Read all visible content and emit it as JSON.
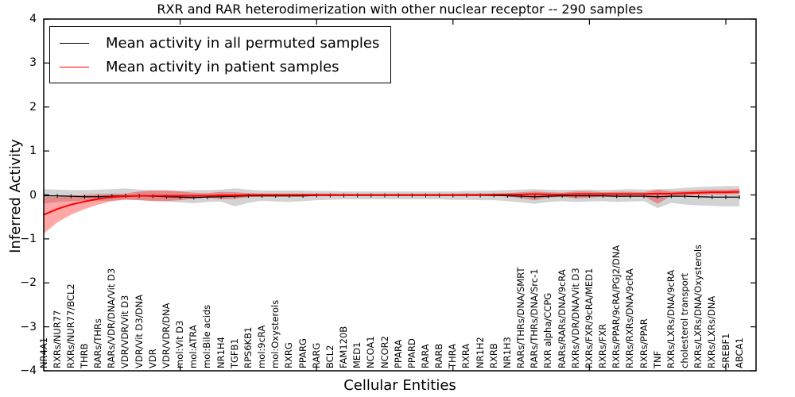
{
  "figure": {
    "title": "RXR and RAR heterodimerization with other nuclear receptor -- 290 samples",
    "xlabel": "Cellular Entities",
    "ylabel": "Inferred Activity"
  },
  "chart_data": {
    "type": "line",
    "title": "RXR and RAR heterodimerization with other nuclear receptor -- 290 samples",
    "xlabel": "Cellular Entities",
    "ylabel": "Inferred Activity",
    "ylim": [
      -4,
      4
    ],
    "yticks": [
      4,
      3,
      2,
      1,
      0,
      -1,
      -2,
      -3,
      -4
    ],
    "xtick_indices": [
      0,
      10,
      20,
      30,
      40,
      50
    ],
    "grid": false,
    "legend_position": "upper left",
    "categories": [
      "NR4A1",
      "RXRs/NUR77",
      "RXRs/NUR77/BCL2",
      "THRB",
      "RARs/THRs",
      "RARs/VDR/DNA/Vit D3",
      "VDR/VDR/Vit D3",
      "VDR/Vit D3/DNA",
      "VDR",
      "VDR/VDR/DNA",
      "mol:Vit D3",
      "mol:ATRA",
      "mol:Bile acids",
      "NR1H4",
      "TGFB1",
      "RPS6KB1",
      "mol:9cRA",
      "mol:Oxysterols",
      "RXRG",
      "PPARG",
      "RARG",
      "BCL2",
      "FAM120B",
      "MED1",
      "NCOA1",
      "NCOR2",
      "PPARA",
      "PPARD",
      "RARA",
      "RARB",
      "THRA",
      "RXRA",
      "NR1H2",
      "RXRB",
      "NR1H3",
      "RARs/THRs/DNA/SMRT",
      "RARs/THRs/DNA/Src-1",
      "RXR alpha/CCPG",
      "RARs/RARs/DNA/9cRA",
      "RXRs/VDR/DNA/Vit D3",
      "RXRs/FXR/9cRA/MED1",
      "RXRs/FXR",
      "RXRs/PPAR/9cRA/PGJ2/DNA",
      "RXRs/RXRs/DNA/9cRA",
      "RXRs/PPAR",
      "TNF",
      "RXRs/LXRs/DNA/9cRA",
      "cholesterol transport",
      "RXRs/LXRs/DNA/Oxysterols",
      "RXRs/LXRs/DNA",
      "SREBF1",
      "ABCA1"
    ],
    "series": [
      {
        "name": "Mean activity in all permuted samples",
        "color": "#000000",
        "line_width": 1.3,
        "marker": "tick",
        "values": [
          -0.02,
          -0.02,
          -0.03,
          -0.04,
          -0.04,
          -0.03,
          -0.02,
          -0.02,
          -0.03,
          -0.04,
          -0.05,
          -0.06,
          -0.05,
          -0.04,
          -0.03,
          -0.02,
          -0.02,
          -0.02,
          -0.02,
          -0.02,
          -0.01,
          -0.01,
          -0.01,
          -0.01,
          -0.01,
          -0.01,
          -0.01,
          -0.01,
          -0.01,
          -0.01,
          -0.01,
          -0.01,
          -0.01,
          -0.01,
          -0.02,
          -0.03,
          -0.04,
          -0.03,
          -0.02,
          -0.02,
          -0.02,
          -0.02,
          -0.03,
          -0.03,
          -0.03,
          -0.04,
          -0.03,
          -0.03,
          -0.04,
          -0.05,
          -0.05,
          -0.05
        ]
      },
      {
        "name": "Mean activity in patient samples",
        "color": "#ff0000",
        "line_width": 2,
        "marker": "none",
        "values": [
          -0.45,
          -0.32,
          -0.22,
          -0.15,
          -0.09,
          -0.05,
          -0.03,
          -0.02,
          -0.02,
          -0.02,
          -0.02,
          -0.02,
          -0.02,
          -0.01,
          -0.01,
          0,
          0,
          0,
          0,
          0,
          0,
          0,
          0,
          0,
          0,
          0,
          0,
          0,
          0,
          0,
          0,
          0,
          0,
          0.01,
          0.01,
          0.01,
          0.02,
          0.01,
          0.01,
          0.02,
          0.02,
          0.02,
          0.02,
          0.02,
          0.02,
          0.03,
          0.03,
          0.04,
          0.05,
          0.06,
          0.06,
          0.07
        ]
      }
    ],
    "bands": [
      {
        "name": "permuted samples range",
        "color": "#808080",
        "opacity": 0.35,
        "upper": [
          0.13,
          0.12,
          0.11,
          0.11,
          0.12,
          0.13,
          0.15,
          0.12,
          0.11,
          0.11,
          0.1,
          0.11,
          0.11,
          0.12,
          0.15,
          0.12,
          0.1,
          0.1,
          0.1,
          0.1,
          0.09,
          0.09,
          0.08,
          0.08,
          0.08,
          0.08,
          0.08,
          0.08,
          0.08,
          0.08,
          0.08,
          0.09,
          0.09,
          0.1,
          0.11,
          0.12,
          0.13,
          0.12,
          0.11,
          0.12,
          0.12,
          0.11,
          0.12,
          0.13,
          0.12,
          0.13,
          0.14,
          0.16,
          0.18,
          0.19,
          0.2,
          0.2
        ],
        "lower": [
          -0.2,
          -0.16,
          -0.14,
          -0.13,
          -0.14,
          -0.13,
          -0.12,
          -0.12,
          -0.13,
          -0.15,
          -0.17,
          -0.19,
          -0.16,
          -0.15,
          -0.26,
          -0.18,
          -0.13,
          -0.15,
          -0.16,
          -0.14,
          -0.12,
          -0.11,
          -0.1,
          -0.1,
          -0.1,
          -0.1,
          -0.1,
          -0.1,
          -0.1,
          -0.1,
          -0.11,
          -0.11,
          -0.12,
          -0.12,
          -0.14,
          -0.17,
          -0.2,
          -0.16,
          -0.14,
          -0.16,
          -0.15,
          -0.14,
          -0.16,
          -0.15,
          -0.14,
          -0.3,
          -0.18,
          -0.22,
          -0.24,
          -0.25,
          -0.26,
          -0.26
        ]
      },
      {
        "name": "patient samples range",
        "color": "#ff0000",
        "opacity": 0.35,
        "upper": [
          -0.05,
          -0.04,
          -0.02,
          0.0,
          0.02,
          0.03,
          0.03,
          0.08,
          0.1,
          0.1,
          0.08,
          0.05,
          0.04,
          0.07,
          0.06,
          0.04,
          0.03,
          0.03,
          0.03,
          0.03,
          0.03,
          0.03,
          0.02,
          0.02,
          0.02,
          0.02,
          0.02,
          0.02,
          0.02,
          0.02,
          0.02,
          0.03,
          0.03,
          0.03,
          0.04,
          0.06,
          0.08,
          0.06,
          0.05,
          0.08,
          0.08,
          0.06,
          0.07,
          0.07,
          0.06,
          0.12,
          0.08,
          0.09,
          0.11,
          0.12,
          0.12,
          0.13
        ],
        "lower": [
          -0.88,
          -0.62,
          -0.45,
          -0.32,
          -0.22,
          -0.14,
          -0.1,
          -0.12,
          -0.14,
          -0.14,
          -0.12,
          -0.08,
          -0.06,
          -0.1,
          -0.09,
          -0.05,
          -0.04,
          -0.04,
          -0.04,
          -0.04,
          -0.03,
          -0.03,
          -0.02,
          -0.02,
          -0.02,
          -0.02,
          -0.02,
          -0.02,
          -0.02,
          -0.02,
          -0.02,
          -0.02,
          -0.02,
          -0.02,
          -0.03,
          -0.08,
          -0.12,
          -0.06,
          -0.04,
          -0.08,
          -0.06,
          -0.04,
          -0.05,
          -0.04,
          -0.03,
          -0.2,
          -0.02,
          -0.01,
          0.0,
          0.01,
          0.01,
          0.02
        ]
      }
    ]
  }
}
